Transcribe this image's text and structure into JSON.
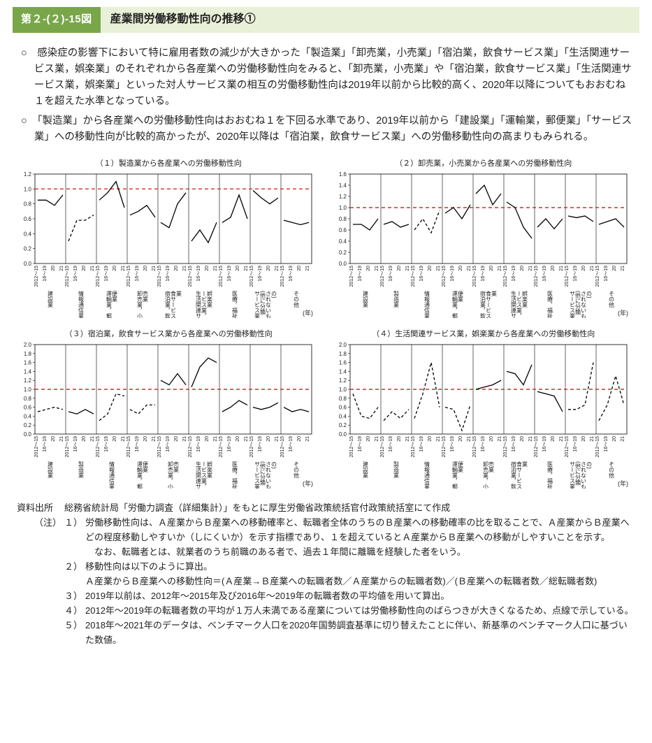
{
  "header": {
    "fig_number": "第２-(２)-15図",
    "fig_title": "産業間労働移動性向の推移①"
  },
  "bullets": [
    "○　感染症の影響下において特に雇用者数の減少が大きかった「製造業」「卸売業，小売業」「宿泊業，飲食サービス業」「生活関連サービス業，娯楽業」のそれぞれから各産業への労働移動性向をみると、「卸売業，小売業」や「宿泊業，飲食サービス業」「生活関連サービス業，娯楽業」といった対人サービス業の相互の労働移動性向は2019年以前から比較的高く、2020年以降についてもおおむね１を超えた水準となっている。",
    "○　「製造業」から各産業への労働移動性向はおおむね１を下回る水準であり、2019年以前から「建設業」「運輸業，郵便業」「サービス業」への移動性向が比較的高かったが、2020年以降は「宿泊業，飲食サービス業」への労働移動性向の高まりもみられる。"
  ],
  "x_periods": [
    "2012～15",
    "16～19",
    "20",
    "21"
  ],
  "charts": [
    {
      "title": "（１）製造業から各産業への労働移動性向",
      "ylim": [
        0,
        1.2
      ],
      "ytick_step": 0.2,
      "ref_line": 1.0,
      "ref_color": "#d42c2c",
      "line_color": "#000000",
      "font_axis": 8,
      "font_xcat": 8,
      "categories": [
        "建設業",
        "情報通信業",
        "運輸業，郵便業",
        "卸売業，小売業",
        "宿泊業，飲食サービス業",
        "生活関連サービス業，娯楽業",
        "医療，福祉",
        "サービス業(他に分類されないもの)",
        "その他"
      ],
      "series": [
        {
          "dash": false,
          "values": [
            0.85,
            0.85,
            0.78,
            0.92
          ]
        },
        {
          "dash": true,
          "values": [
            0.3,
            0.58,
            0.58,
            0.65
          ]
        },
        {
          "dash": false,
          "values": [
            0.85,
            0.95,
            1.1,
            0.75
          ]
        },
        {
          "dash": false,
          "values": [
            0.65,
            0.7,
            0.78,
            0.62
          ]
        },
        {
          "dash": false,
          "values": [
            0.55,
            0.48,
            0.8,
            0.95
          ]
        },
        {
          "dash": false,
          "values": [
            0.3,
            0.45,
            0.28,
            0.55
          ]
        },
        {
          "dash": false,
          "values": [
            0.55,
            0.62,
            0.92,
            0.6
          ]
        },
        {
          "dash": false,
          "values": [
            0.98,
            0.88,
            0.8,
            0.88
          ]
        },
        {
          "dash": false,
          "values": [
            0.58,
            0.55,
            0.52,
            0.55
          ]
        }
      ]
    },
    {
      "title": "（２）卸売業，小売業から各産業への労働移動性向",
      "ylim": [
        0,
        1.6
      ],
      "ytick_step": 0.2,
      "ref_line": 1.0,
      "ref_color": "#d42c2c",
      "line_color": "#000000",
      "font_axis": 8,
      "font_xcat": 8,
      "categories": [
        "建設業",
        "製造業",
        "情報通信業",
        "運輸業，郵便業",
        "宿泊業，飲食サービス業",
        "生活関連サービス業，娯楽業",
        "医療，福祉",
        "サービス業(他に分類されないもの)",
        "その他"
      ],
      "series": [
        {
          "dash": false,
          "values": [
            0.7,
            0.7,
            0.6,
            0.8
          ]
        },
        {
          "dash": false,
          "values": [
            0.7,
            0.75,
            0.65,
            0.7
          ]
        },
        {
          "dash": true,
          "values": [
            0.6,
            0.8,
            0.55,
            0.95
          ]
        },
        {
          "dash": false,
          "values": [
            0.9,
            1.0,
            0.8,
            1.05
          ]
        },
        {
          "dash": false,
          "values": [
            1.25,
            1.4,
            1.05,
            1.25
          ]
        },
        {
          "dash": false,
          "values": [
            1.1,
            1.0,
            0.65,
            0.45
          ]
        },
        {
          "dash": false,
          "values": [
            0.65,
            0.8,
            0.62,
            0.8
          ]
        },
        {
          "dash": false,
          "values": [
            0.85,
            0.82,
            0.85,
            0.75
          ]
        },
        {
          "dash": false,
          "values": [
            0.7,
            0.75,
            0.8,
            0.65
          ]
        }
      ]
    },
    {
      "title": "（３）宿泊業，飲食サービス業から各産業への労働移動性向",
      "ylim": [
        0,
        2.0
      ],
      "ytick_step": 0.2,
      "ref_line": 1.0,
      "ref_color": "#d42c2c",
      "line_color": "#000000",
      "font_axis": 8,
      "font_xcat": 8,
      "categories": [
        "建設業",
        "製造業",
        "情報通信業",
        "運輸業，郵便業",
        "卸売業，小売業",
        "生活関連サービス業，娯楽業",
        "医療，福祉",
        "サービス業(他に分類されないもの)",
        "その他"
      ],
      "series": [
        {
          "dash": true,
          "values": [
            0.5,
            0.55,
            0.6,
            0.55
          ]
        },
        {
          "dash": false,
          "values": [
            0.5,
            0.45,
            0.55,
            0.45
          ]
        },
        {
          "dash": true,
          "values": [
            0.3,
            0.45,
            0.9,
            0.85
          ]
        },
        {
          "dash": true,
          "values": [
            0.55,
            0.45,
            0.65,
            0.65
          ]
        },
        {
          "dash": false,
          "values": [
            1.2,
            1.1,
            1.35,
            1.1
          ]
        },
        {
          "dash": false,
          "values": [
            1.05,
            1.5,
            1.7,
            1.6
          ]
        },
        {
          "dash": false,
          "values": [
            0.5,
            0.6,
            0.75,
            0.65
          ]
        },
        {
          "dash": false,
          "values": [
            0.6,
            0.55,
            0.6,
            0.7
          ]
        },
        {
          "dash": false,
          "values": [
            0.6,
            0.5,
            0.55,
            0.5
          ]
        }
      ]
    },
    {
      "title": "（４）生活関連サービス業，娯楽業から各産業への労働移動性向",
      "ylim": [
        0,
        2.0
      ],
      "ytick_step": 0.2,
      "ref_line": 1.0,
      "ref_color": "#d42c2c",
      "line_color": "#000000",
      "font_axis": 8,
      "font_xcat": 8,
      "categories": [
        "建設業",
        "製造業",
        "情報通信業",
        "運輸業，郵便業",
        "卸売業，小売業",
        "宿泊業，飲食サービス業",
        "医療，福祉",
        "サービス業(他に分類されないもの)",
        "その他"
      ],
      "series": [
        {
          "dash": true,
          "values": [
            0.9,
            0.4,
            0.35,
            0.6
          ]
        },
        {
          "dash": true,
          "values": [
            0.3,
            0.5,
            0.35,
            0.55
          ]
        },
        {
          "dash": true,
          "values": [
            0.35,
            0.9,
            1.6,
            0.6
          ]
        },
        {
          "dash": true,
          "values": [
            0.6,
            0.55,
            0.08,
            0.65
          ]
        },
        {
          "dash": false,
          "values": [
            1.0,
            1.05,
            1.1,
            1.2
          ]
        },
        {
          "dash": false,
          "values": [
            1.4,
            1.35,
            1.1,
            1.55
          ]
        },
        {
          "dash": false,
          "values": [
            0.95,
            0.9,
            0.85,
            0.5
          ]
        },
        {
          "dash": true,
          "values": [
            0.55,
            0.55,
            0.65,
            1.6
          ]
        },
        {
          "dash": true,
          "values": [
            0.3,
            0.65,
            1.3,
            0.65
          ]
        }
      ]
    }
  ],
  "source": {
    "label": "資料出所",
    "text": "総務省統計局「労働力調査（詳細集計）」をもとに厚生労働省政策統括官付政策統括室にて作成"
  },
  "notes_label": "（注）",
  "notes": [
    {
      "n": "１）",
      "lines": [
        "労働移動性向は、Ａ産業からＢ産業への移動確率と、転職者全体のうちのＢ産業への移動確率の比を取ることで、Ａ産業からＢ産業へどの程度移動しやすいか（しにくいか）を示す指標であり、１を超えているとＡ産業からＢ産業への移動がしやすいことを示す。",
        "　なお、転職者とは、就業者のうち前職のある者で、過去１年間に離職を経験した者をいう。"
      ]
    },
    {
      "n": "２）",
      "lines": [
        "移動性向は以下のように算出。",
        "Ａ産業からＢ産業への移動性向＝(Ａ産業→Ｂ産業への転職者数／Ａ産業からの転職者数)／(Ｂ産業への転職者数／総転職者数)"
      ]
    },
    {
      "n": "３）",
      "lines": [
        "2019年以前は、2012年～2015年及び2016年～2019年の転職者数の平均値を用いて算出。"
      ]
    },
    {
      "n": "４）",
      "lines": [
        "2012年～2019年の転職者数の平均が１万人未満である産業については労働移動性向のばらつきが大きくなるため、点線で示している。"
      ]
    },
    {
      "n": "５）",
      "lines": [
        "2018年～2021年のデータは、ベンチマーク人口を2020年国勢調査基準に切り替えたことに伴い、新基準のベンチマーク人口に基づいた数値。"
      ]
    }
  ]
}
